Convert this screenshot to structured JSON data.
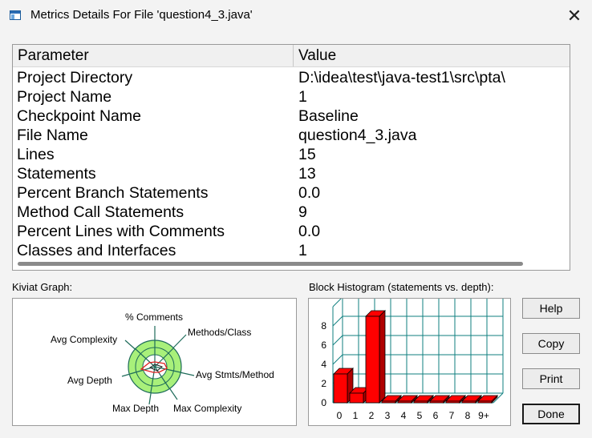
{
  "window": {
    "title": "Metrics Details For File 'question4_3.java'",
    "close_glyph": "✕"
  },
  "table": {
    "headers": {
      "parameter": "Parameter",
      "value": "Value"
    },
    "rows": [
      {
        "parameter": "Project Directory",
        "value": "D:\\idea\\test\\java-test1\\src\\pta\\"
      },
      {
        "parameter": "Project Name",
        "value": "1"
      },
      {
        "parameter": "Checkpoint Name",
        "value": "Baseline"
      },
      {
        "parameter": "File Name",
        "value": "question4_3.java"
      },
      {
        "parameter": "Lines",
        "value": "15"
      },
      {
        "parameter": "Statements",
        "value": "13"
      },
      {
        "parameter": "Percent Branch Statements",
        "value": "0.0"
      },
      {
        "parameter": "Method Call Statements",
        "value": "9"
      },
      {
        "parameter": "Percent Lines with Comments",
        "value": "0.0"
      },
      {
        "parameter": "Classes and Interfaces",
        "value": "1"
      }
    ]
  },
  "kiviat": {
    "label": "Kiviat Graph:",
    "axes": {
      "comments": "% Comments",
      "methods_class": "Methods/Class",
      "avg_stmts_method": "Avg Stmts/Method",
      "max_complexity": "Max Complexity",
      "max_depth": "Max Depth",
      "avg_depth": "Avg Depth",
      "avg_complexity": "Avg Complexity"
    },
    "colors": {
      "ring": "#a8f07a",
      "ring_stroke": "#1e6b5a",
      "polygon": "#e02020"
    }
  },
  "histogram": {
    "label": "Block Histogram (statements vs. depth):",
    "colors": {
      "bar": "#ff0000",
      "grid": "#0f7f7f"
    }
  },
  "chart_data": {
    "type": "bar",
    "title": "Block Histogram (statements vs. depth):",
    "categories": [
      "0",
      "1",
      "2",
      "3",
      "4",
      "5",
      "6",
      "7",
      "8",
      "9+"
    ],
    "values": [
      3,
      1,
      9,
      0,
      0,
      0,
      0,
      0,
      0,
      0
    ],
    "yticks": [
      "0",
      "2",
      "4",
      "6",
      "8"
    ],
    "ylim": [
      0,
      10
    ],
    "grid": true
  },
  "buttons": {
    "help": "Help",
    "copy": "Copy",
    "print": "Print",
    "done": "Done"
  }
}
